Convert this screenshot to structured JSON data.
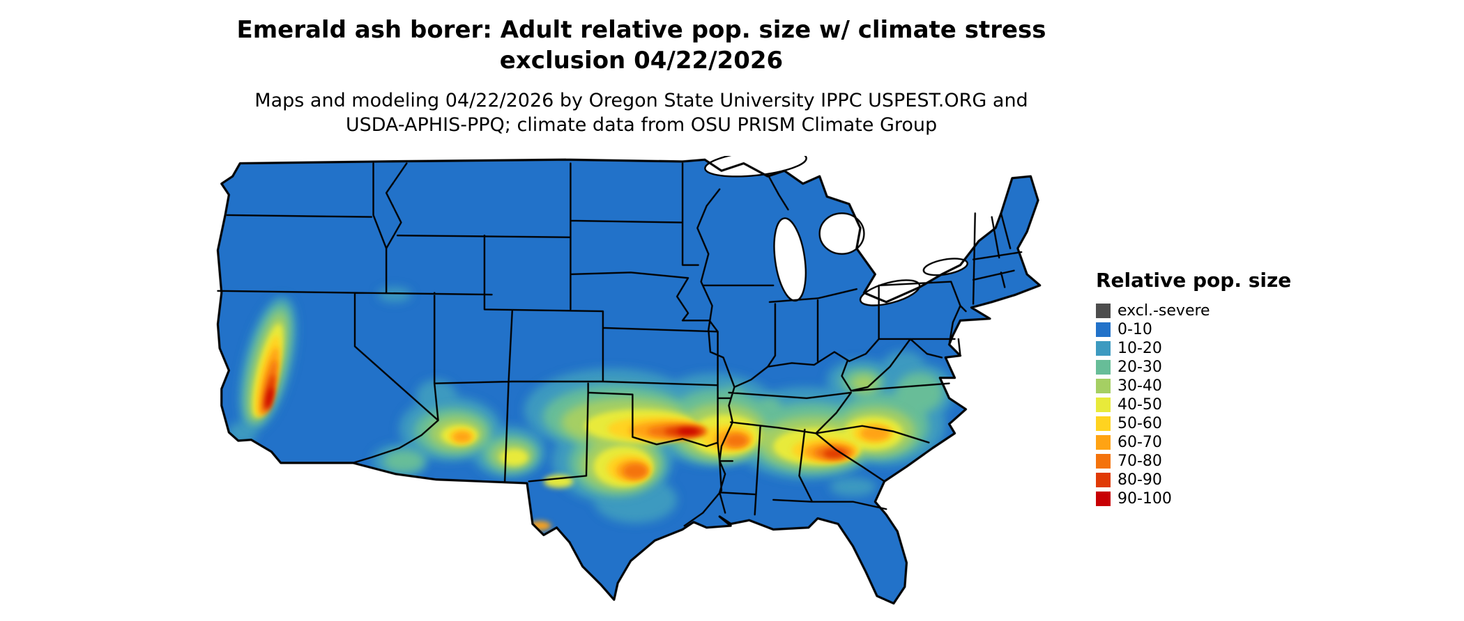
{
  "header": {
    "title_line1": "Emerald ash borer: Adult relative pop. size w/ climate stress",
    "title_line2": "exclusion 04/22/2026",
    "subtitle_line1": "Maps and modeling 04/22/2026 by Oregon State University IPPC USPEST.ORG and",
    "subtitle_line2": "USDA-APHIS-PPQ; climate data from OSU PRISM Climate Group"
  },
  "legend": {
    "title": "Relative pop. size",
    "items": [
      {
        "label": "excl.-severe",
        "color": "#4d4d4d"
      },
      {
        "label": "0-10",
        "color": "#2272c9"
      },
      {
        "label": "10-20",
        "color": "#3d9ac0"
      },
      {
        "label": "20-30",
        "color": "#67bd98"
      },
      {
        "label": "30-40",
        "color": "#a5cf63"
      },
      {
        "label": "40-50",
        "color": "#e8ea3a"
      },
      {
        "label": "50-60",
        "color": "#ffd320"
      },
      {
        "label": "60-70",
        "color": "#ffa313"
      },
      {
        "label": "70-80",
        "color": "#f4730c"
      },
      {
        "label": "80-90",
        "color": "#e03a06"
      },
      {
        "label": "90-100",
        "color": "#c80003"
      }
    ]
  },
  "map": {
    "region": "Contiguous United States",
    "background": "#ffffff",
    "outline_color": "#000000",
    "lake_color": "#ffffff"
  }
}
